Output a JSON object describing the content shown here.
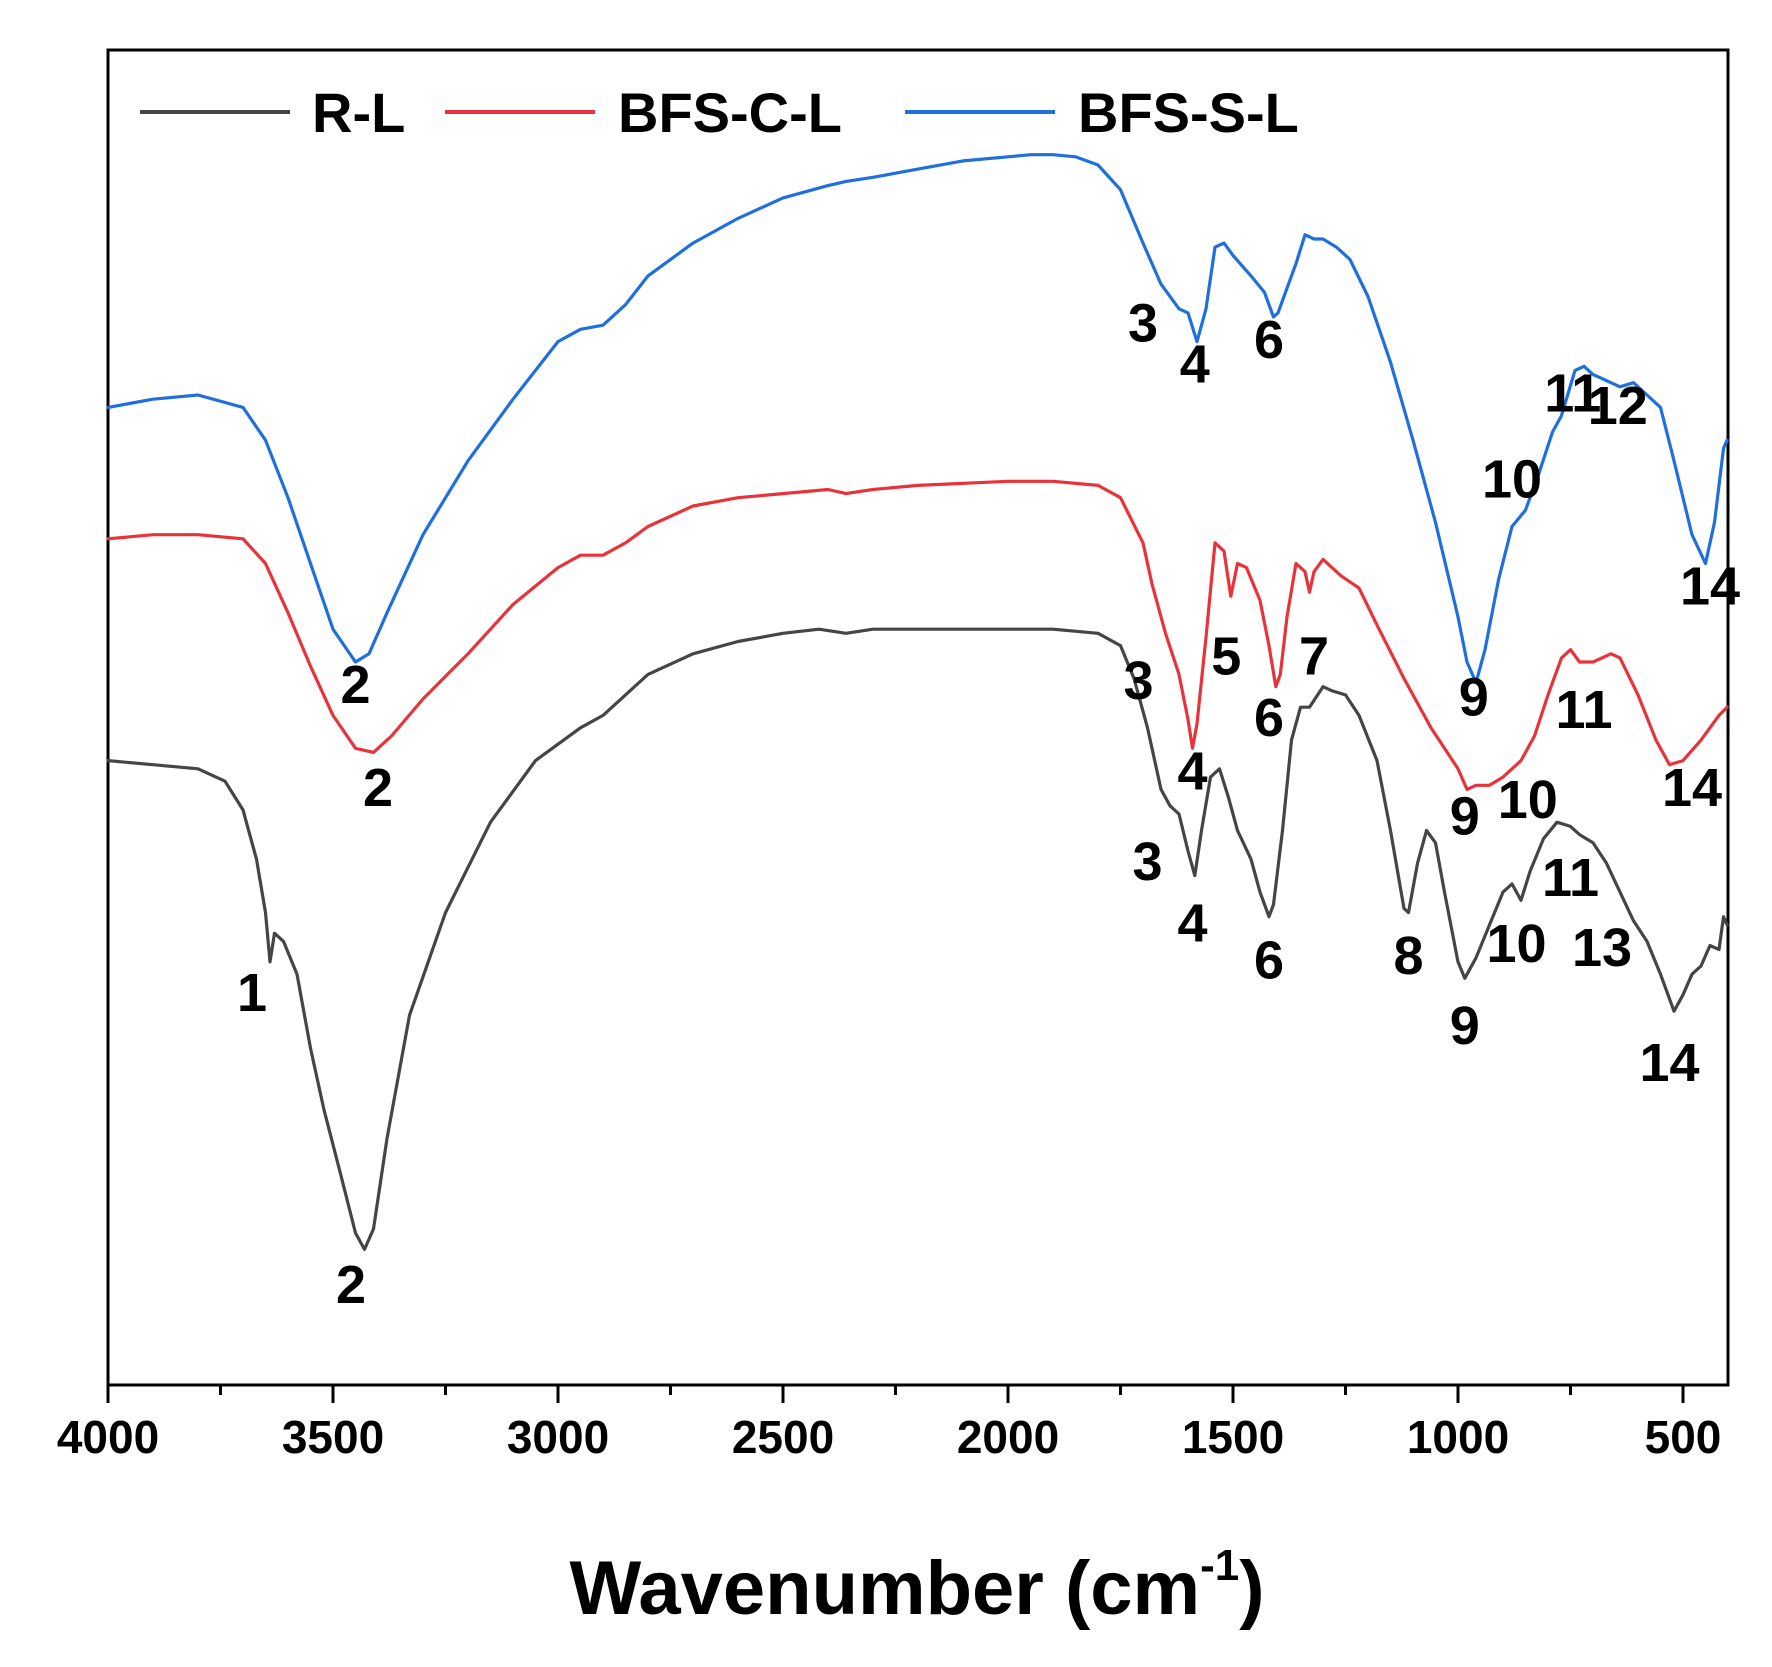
{
  "chart_data": {
    "type": "line",
    "title": "",
    "xlabel": "Wavenumber (cm",
    "xlabel_sup": "-1",
    "xlabel_end": ")",
    "ylabel": "",
    "xlim": [
      4000,
      400
    ],
    "ylim": [
      -3.2,
      0.05
    ],
    "x_ticks": [
      4000,
      3500,
      3000,
      2500,
      2000,
      1500,
      1000,
      500
    ],
    "y_ticks_shown": false,
    "legend": {
      "position": "top-left",
      "entries": [
        "R-L",
        "BFS-C-L",
        "BFS-S-L"
      ]
    },
    "series": [
      {
        "name": "BFS-S-L",
        "color": "#1f6fdc",
        "points": [
          [
            4000,
            -0.82
          ],
          [
            3900,
            -0.8
          ],
          [
            3800,
            -0.79
          ],
          [
            3700,
            -0.82
          ],
          [
            3650,
            -0.9
          ],
          [
            3600,
            -1.04
          ],
          [
            3550,
            -1.2
          ],
          [
            3500,
            -1.36
          ],
          [
            3450,
            -1.44
          ],
          [
            3420,
            -1.42
          ],
          [
            3380,
            -1.32
          ],
          [
            3300,
            -1.13
          ],
          [
            3200,
            -0.95
          ],
          [
            3100,
            -0.8
          ],
          [
            3000,
            -0.66
          ],
          [
            2950,
            -0.63
          ],
          [
            2900,
            -0.62
          ],
          [
            2850,
            -0.57
          ],
          [
            2800,
            -0.5
          ],
          [
            2700,
            -0.42
          ],
          [
            2600,
            -0.36
          ],
          [
            2500,
            -0.31
          ],
          [
            2400,
            -0.28
          ],
          [
            2360,
            -0.27
          ],
          [
            2300,
            -0.26
          ],
          [
            2200,
            -0.24
          ],
          [
            2100,
            -0.22
          ],
          [
            2000,
            -0.21
          ],
          [
            1950,
            -0.205
          ],
          [
            1900,
            -0.205
          ],
          [
            1850,
            -0.21
          ],
          [
            1800,
            -0.23
          ],
          [
            1750,
            -0.29
          ],
          [
            1700,
            -0.42
          ],
          [
            1660,
            -0.52
          ],
          [
            1620,
            -0.58
          ],
          [
            1600,
            -0.59
          ],
          [
            1580,
            -0.66
          ],
          [
            1560,
            -0.58
          ],
          [
            1540,
            -0.43
          ],
          [
            1520,
            -0.42
          ],
          [
            1500,
            -0.45
          ],
          [
            1460,
            -0.5
          ],
          [
            1430,
            -0.54
          ],
          [
            1410,
            -0.6
          ],
          [
            1400,
            -0.59
          ],
          [
            1380,
            -0.53
          ],
          [
            1360,
            -0.47
          ],
          [
            1340,
            -0.4
          ],
          [
            1320,
            -0.41
          ],
          [
            1300,
            -0.41
          ],
          [
            1270,
            -0.43
          ],
          [
            1240,
            -0.46
          ],
          [
            1200,
            -0.55
          ],
          [
            1150,
            -0.71
          ],
          [
            1100,
            -0.9
          ],
          [
            1050,
            -1.1
          ],
          [
            1000,
            -1.33
          ],
          [
            980,
            -1.44
          ],
          [
            960,
            -1.49
          ],
          [
            940,
            -1.41
          ],
          [
            910,
            -1.24
          ],
          [
            880,
            -1.11
          ],
          [
            850,
            -1.07
          ],
          [
            820,
            -0.98
          ],
          [
            790,
            -0.88
          ],
          [
            770,
            -0.84
          ],
          [
            740,
            -0.73
          ],
          [
            720,
            -0.72
          ],
          [
            700,
            -0.74
          ],
          [
            680,
            -0.75
          ],
          [
            640,
            -0.77
          ],
          [
            610,
            -0.76
          ],
          [
            580,
            -0.79
          ],
          [
            550,
            -0.82
          ],
          [
            520,
            -0.95
          ],
          [
            480,
            -1.13
          ],
          [
            450,
            -1.2
          ],
          [
            430,
            -1.1
          ],
          [
            410,
            -0.92
          ],
          [
            402,
            -0.9
          ]
        ]
      },
      {
        "name": "BFS-C-L",
        "color": "#e8333a",
        "points": [
          [
            4000,
            -1.14
          ],
          [
            3900,
            -1.13
          ],
          [
            3800,
            -1.13
          ],
          [
            3700,
            -1.14
          ],
          [
            3650,
            -1.2
          ],
          [
            3600,
            -1.32
          ],
          [
            3550,
            -1.45
          ],
          [
            3500,
            -1.57
          ],
          [
            3450,
            -1.65
          ],
          [
            3410,
            -1.66
          ],
          [
            3370,
            -1.62
          ],
          [
            3300,
            -1.53
          ],
          [
            3200,
            -1.42
          ],
          [
            3100,
            -1.3
          ],
          [
            3000,
            -1.21
          ],
          [
            2950,
            -1.18
          ],
          [
            2900,
            -1.18
          ],
          [
            2850,
            -1.15
          ],
          [
            2800,
            -1.11
          ],
          [
            2700,
            -1.06
          ],
          [
            2600,
            -1.04
          ],
          [
            2500,
            -1.03
          ],
          [
            2400,
            -1.02
          ],
          [
            2360,
            -1.03
          ],
          [
            2300,
            -1.02
          ],
          [
            2200,
            -1.01
          ],
          [
            2000,
            -1.0
          ],
          [
            1900,
            -1.0
          ],
          [
            1800,
            -1.01
          ],
          [
            1750,
            -1.04
          ],
          [
            1700,
            -1.15
          ],
          [
            1680,
            -1.25
          ],
          [
            1650,
            -1.37
          ],
          [
            1620,
            -1.47
          ],
          [
            1600,
            -1.58
          ],
          [
            1590,
            -1.65
          ],
          [
            1580,
            -1.59
          ],
          [
            1560,
            -1.38
          ],
          [
            1540,
            -1.15
          ],
          [
            1520,
            -1.17
          ],
          [
            1505,
            -1.28
          ],
          [
            1490,
            -1.2
          ],
          [
            1470,
            -1.21
          ],
          [
            1440,
            -1.29
          ],
          [
            1420,
            -1.4
          ],
          [
            1405,
            -1.5
          ],
          [
            1395,
            -1.47
          ],
          [
            1380,
            -1.33
          ],
          [
            1360,
            -1.2
          ],
          [
            1340,
            -1.22
          ],
          [
            1330,
            -1.27
          ],
          [
            1320,
            -1.22
          ],
          [
            1300,
            -1.19
          ],
          [
            1260,
            -1.23
          ],
          [
            1220,
            -1.26
          ],
          [
            1180,
            -1.35
          ],
          [
            1120,
            -1.48
          ],
          [
            1060,
            -1.6
          ],
          [
            1000,
            -1.7
          ],
          [
            980,
            -1.75
          ],
          [
            960,
            -1.74
          ],
          [
            930,
            -1.74
          ],
          [
            900,
            -1.72
          ],
          [
            860,
            -1.68
          ],
          [
            830,
            -1.62
          ],
          [
            800,
            -1.52
          ],
          [
            770,
            -1.43
          ],
          [
            750,
            -1.41
          ],
          [
            730,
            -1.44
          ],
          [
            700,
            -1.44
          ],
          [
            660,
            -1.42
          ],
          [
            640,
            -1.43
          ],
          [
            600,
            -1.52
          ],
          [
            560,
            -1.63
          ],
          [
            530,
            -1.69
          ],
          [
            500,
            -1.68
          ],
          [
            460,
            -1.63
          ],
          [
            420,
            -1.57
          ],
          [
            402,
            -1.55
          ]
        ]
      },
      {
        "name": "R-L",
        "color": "#454545",
        "points": [
          [
            4000,
            -1.68
          ],
          [
            3900,
            -1.69
          ],
          [
            3800,
            -1.7
          ],
          [
            3740,
            -1.73
          ],
          [
            3700,
            -1.8
          ],
          [
            3670,
            -1.92
          ],
          [
            3650,
            -2.05
          ],
          [
            3640,
            -2.17
          ],
          [
            3630,
            -2.1
          ],
          [
            3610,
            -2.12
          ],
          [
            3580,
            -2.2
          ],
          [
            3550,
            -2.38
          ],
          [
            3520,
            -2.53
          ],
          [
            3480,
            -2.7
          ],
          [
            3450,
            -2.83
          ],
          [
            3430,
            -2.87
          ],
          [
            3410,
            -2.82
          ],
          [
            3380,
            -2.6
          ],
          [
            3330,
            -2.3
          ],
          [
            3250,
            -2.05
          ],
          [
            3150,
            -1.83
          ],
          [
            3050,
            -1.68
          ],
          [
            2950,
            -1.6
          ],
          [
            2900,
            -1.57
          ],
          [
            2850,
            -1.52
          ],
          [
            2800,
            -1.47
          ],
          [
            2700,
            -1.42
          ],
          [
            2600,
            -1.39
          ],
          [
            2500,
            -1.37
          ],
          [
            2420,
            -1.36
          ],
          [
            2360,
            -1.37
          ],
          [
            2300,
            -1.36
          ],
          [
            2200,
            -1.36
          ],
          [
            2000,
            -1.36
          ],
          [
            1900,
            -1.36
          ],
          [
            1800,
            -1.37
          ],
          [
            1750,
            -1.4
          ],
          [
            1720,
            -1.48
          ],
          [
            1690,
            -1.6
          ],
          [
            1660,
            -1.75
          ],
          [
            1640,
            -1.79
          ],
          [
            1620,
            -1.81
          ],
          [
            1600,
            -1.9
          ],
          [
            1585,
            -1.96
          ],
          [
            1570,
            -1.85
          ],
          [
            1550,
            -1.72
          ],
          [
            1530,
            -1.7
          ],
          [
            1510,
            -1.77
          ],
          [
            1490,
            -1.85
          ],
          [
            1460,
            -1.92
          ],
          [
            1440,
            -2.0
          ],
          [
            1420,
            -2.06
          ],
          [
            1410,
            -2.03
          ],
          [
            1390,
            -1.85
          ],
          [
            1370,
            -1.63
          ],
          [
            1350,
            -1.55
          ],
          [
            1330,
            -1.55
          ],
          [
            1300,
            -1.5
          ],
          [
            1280,
            -1.51
          ],
          [
            1250,
            -1.52
          ],
          [
            1220,
            -1.57
          ],
          [
            1180,
            -1.68
          ],
          [
            1150,
            -1.85
          ],
          [
            1120,
            -2.04
          ],
          [
            1110,
            -2.05
          ],
          [
            1090,
            -1.93
          ],
          [
            1070,
            -1.85
          ],
          [
            1050,
            -1.88
          ],
          [
            1030,
            -2.0
          ],
          [
            1000,
            -2.17
          ],
          [
            985,
            -2.21
          ],
          [
            960,
            -2.16
          ],
          [
            930,
            -2.08
          ],
          [
            900,
            -2.0
          ],
          [
            880,
            -1.98
          ],
          [
            860,
            -2.02
          ],
          [
            840,
            -1.95
          ],
          [
            810,
            -1.87
          ],
          [
            780,
            -1.83
          ],
          [
            750,
            -1.84
          ],
          [
            730,
            -1.86
          ],
          [
            700,
            -1.88
          ],
          [
            670,
            -1.93
          ],
          [
            640,
            -2.0
          ],
          [
            610,
            -2.07
          ],
          [
            580,
            -2.12
          ],
          [
            550,
            -2.2
          ],
          [
            520,
            -2.29
          ],
          [
            500,
            -2.25
          ],
          [
            480,
            -2.2
          ],
          [
            460,
            -2.18
          ],
          [
            440,
            -2.13
          ],
          [
            420,
            -2.14
          ],
          [
            410,
            -2.06
          ],
          [
            402,
            -2.08
          ]
        ]
      }
    ],
    "annotations": [
      {
        "series": "BFS-S-L",
        "text": "2",
        "x": 3450,
        "y": -1.54
      },
      {
        "series": "BFS-S-L",
        "text": "3",
        "x": 1700,
        "y": -0.66
      },
      {
        "series": "BFS-S-L",
        "text": "4",
        "x": 1585,
        "y": -0.76
      },
      {
        "series": "BFS-S-L",
        "text": "6",
        "x": 1420,
        "y": -0.7
      },
      {
        "series": "BFS-S-L",
        "text": "11",
        "x": 745,
        "y": -0.83
      },
      {
        "series": "BFS-S-L",
        "text": "12",
        "x": 645,
        "y": -0.86
      },
      {
        "series": "BFS-S-L",
        "text": "10",
        "x": 880,
        "y": -1.04
      },
      {
        "series": "BFS-S-L",
        "text": "9",
        "x": 965,
        "y": -1.57
      },
      {
        "series": "BFS-S-L",
        "text": "14",
        "x": 440,
        "y": -1.3
      },
      {
        "series": "BFS-C-L",
        "text": "2",
        "x": 3400,
        "y": -1.79
      },
      {
        "series": "BFS-C-L",
        "text": "3",
        "x": 1710,
        "y": -1.53
      },
      {
        "series": "BFS-C-L",
        "text": "5",
        "x": 1515,
        "y": -1.47
      },
      {
        "series": "BFS-C-L",
        "text": "7",
        "x": 1320,
        "y": -1.47
      },
      {
        "series": "BFS-C-L",
        "text": "6",
        "x": 1420,
        "y": -1.62
      },
      {
        "series": "BFS-C-L",
        "text": "4",
        "x": 1590,
        "y": -1.75
      },
      {
        "series": "BFS-C-L",
        "text": "9",
        "x": 985,
        "y": -1.86
      },
      {
        "series": "BFS-C-L",
        "text": "10",
        "x": 845,
        "y": -1.82
      },
      {
        "series": "BFS-C-L",
        "text": "11",
        "x": 720,
        "y": -1.6
      },
      {
        "series": "BFS-C-L",
        "text": "14",
        "x": 480,
        "y": -1.79
      },
      {
        "series": "R-L",
        "text": "1",
        "x": 3680,
        "y": -2.29
      },
      {
        "series": "R-L",
        "text": "2",
        "x": 3460,
        "y": -3.0
      },
      {
        "series": "R-L",
        "text": "3",
        "x": 1690,
        "y": -1.97
      },
      {
        "series": "R-L",
        "text": "4",
        "x": 1590,
        "y": -2.12
      },
      {
        "series": "R-L",
        "text": "6",
        "x": 1420,
        "y": -2.21
      },
      {
        "series": "R-L",
        "text": "8",
        "x": 1110,
        "y": -2.2
      },
      {
        "series": "R-L",
        "text": "9",
        "x": 985,
        "y": -2.37
      },
      {
        "series": "R-L",
        "text": "10",
        "x": 870,
        "y": -2.17
      },
      {
        "series": "R-L",
        "text": "11",
        "x": 750,
        "y": -2.01
      },
      {
        "series": "R-L",
        "text": "13",
        "x": 680,
        "y": -2.18
      },
      {
        "series": "R-L",
        "text": "14",
        "x": 530,
        "y": -2.46
      }
    ]
  }
}
